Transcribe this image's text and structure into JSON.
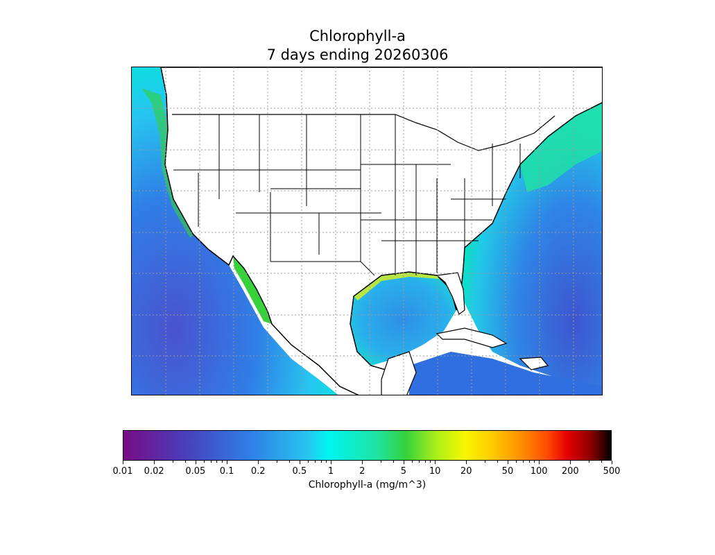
{
  "title_line1": "Chlorophyll-a",
  "title_line2": "7 days ending 20260306",
  "colorbar": {
    "label": "Chlorophyll-a (mg/m^3)",
    "scale": "log",
    "range": [
      0.01,
      500
    ],
    "major_ticks": [
      "0.01",
      "0.02",
      "0.05",
      "0.1",
      "0.2",
      "0.5",
      "1",
      "2",
      "5",
      "10",
      "20",
      "50",
      "100",
      "200",
      "500"
    ],
    "colors": [
      "#7a0a86",
      "#4b3cb8",
      "#2f7fe6",
      "#00f5f2",
      "#36d13b",
      "#f7f700",
      "#ff8a00",
      "#e60000",
      "#000000"
    ]
  },
  "map": {
    "region": "Continental United States, Gulf of Mexico, Caribbean",
    "gridlines": "dotted",
    "land_color": "#ffffff",
    "border_color": "#000000"
  }
}
